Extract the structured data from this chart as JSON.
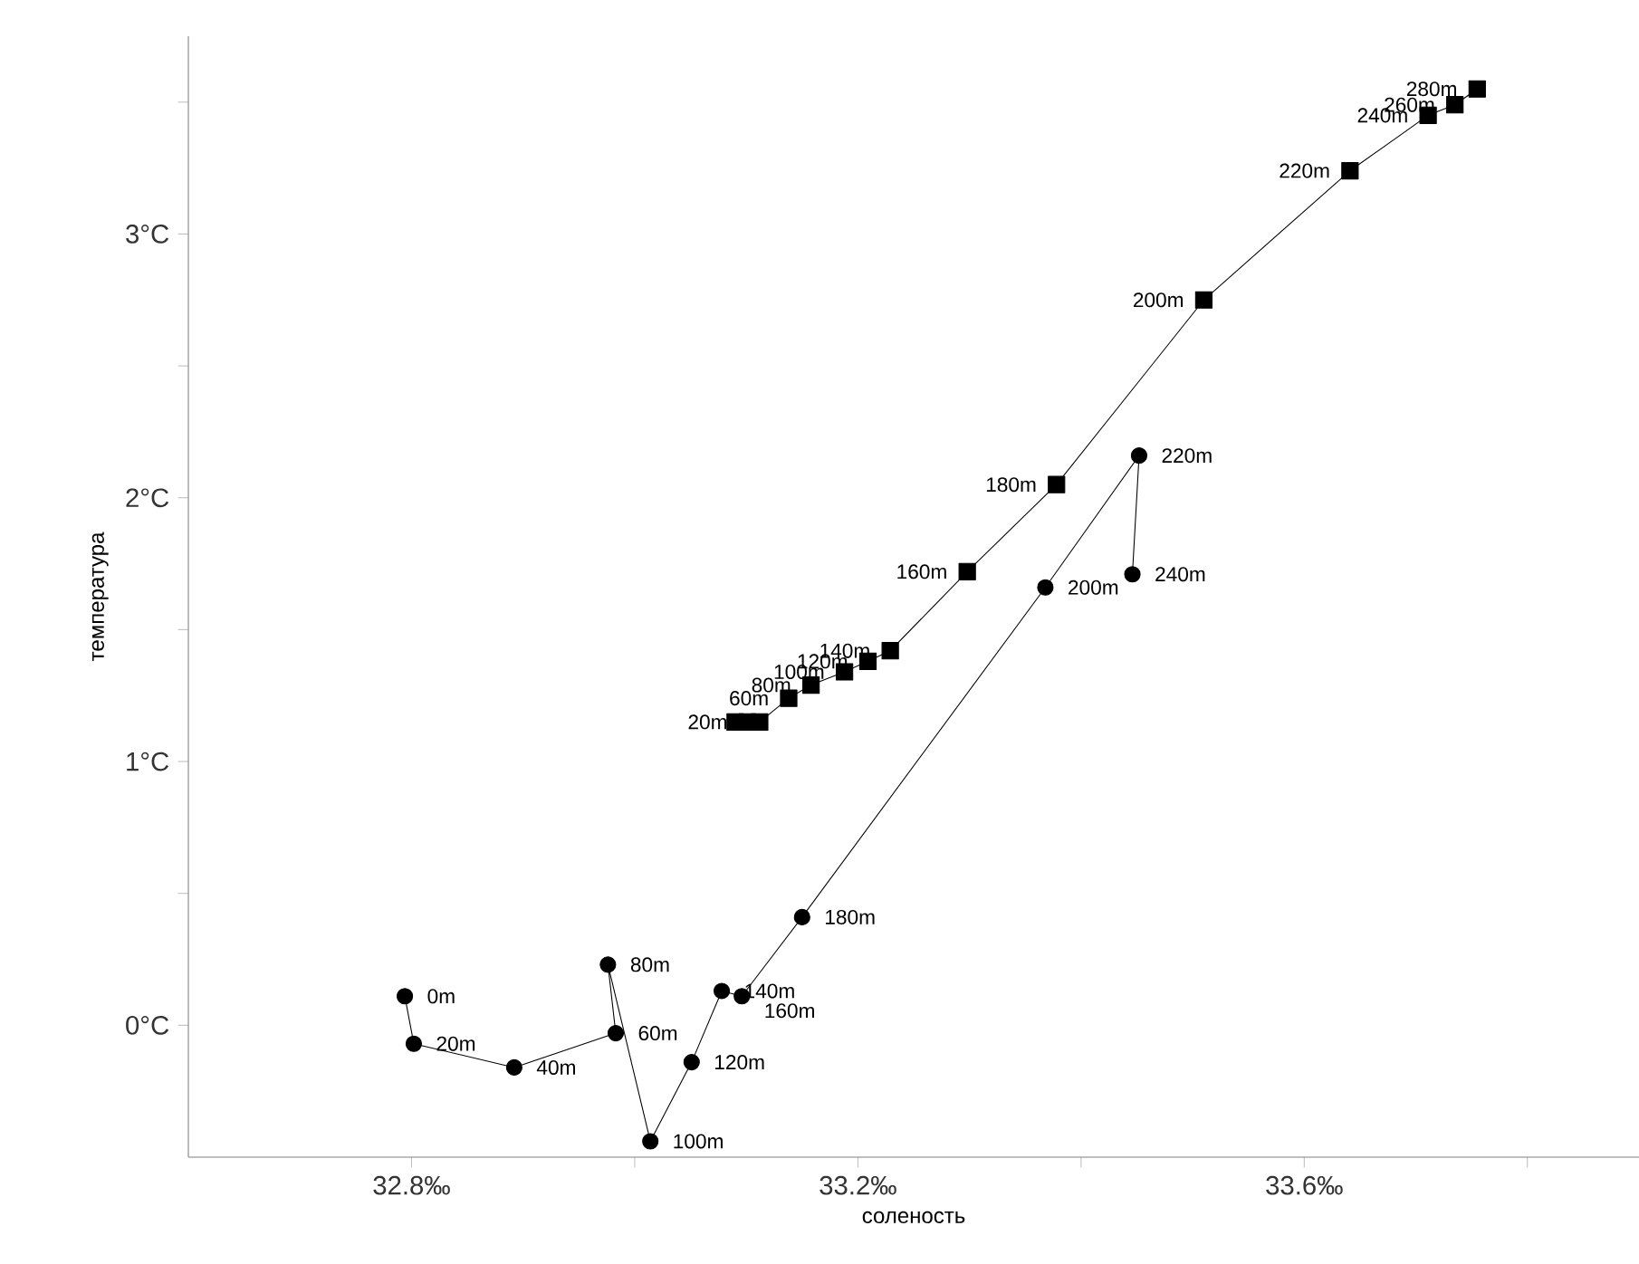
{
  "chart_data": {
    "type": "line",
    "xlabel": "соленость",
    "ylabel": "температура",
    "xlim": [
      32.6,
      33.9
    ],
    "ylim": [
      -0.5,
      3.75
    ],
    "xticks": [
      {
        "value": 32.8,
        "label": "32.8‰"
      },
      {
        "value": 33.0,
        "label": null
      },
      {
        "value": 33.2,
        "label": "33.2‰"
      },
      {
        "value": 33.4,
        "label": null
      },
      {
        "value": 33.6,
        "label": "33.6‰"
      },
      {
        "value": 33.8,
        "label": null
      }
    ],
    "yticks": [
      {
        "value": 0,
        "label": "0°C"
      },
      {
        "value": 0.5,
        "label": null
      },
      {
        "value": 1,
        "label": "1°C"
      },
      {
        "value": 1.5,
        "label": null
      },
      {
        "value": 2,
        "label": "2°C"
      },
      {
        "value": 2.5,
        "label": null
      },
      {
        "value": 3,
        "label": "3°C"
      },
      {
        "value": 3.5,
        "label": null
      }
    ],
    "grid": false,
    "series": [
      {
        "color": "#000000",
        "marker": "square",
        "x": [
          33.09,
          33.101,
          33.112,
          33.138,
          33.158,
          33.188,
          33.209,
          33.229,
          33.298,
          33.378,
          33.51,
          33.641,
          33.711,
          33.735,
          33.755
        ],
        "values": [
          1.15,
          1.15,
          1.15,
          1.24,
          1.29,
          1.34,
          1.38,
          1.42,
          1.72,
          2.05,
          2.75,
          3.24,
          3.45,
          3.49,
          3.55
        ]
      },
      {
        "color": "#000000",
        "marker": "circle",
        "x": [
          32.794,
          32.802,
          32.892,
          32.983,
          32.976,
          33.014,
          33.051,
          33.078,
          33.096,
          33.15,
          33.368,
          33.452,
          33.446
        ],
        "values": [
          0.11,
          -0.07,
          -0.16,
          -0.03,
          0.23,
          -0.44,
          -0.14,
          0.13,
          0.11,
          0.41,
          1.66,
          2.16,
          1.71
        ]
      }
    ],
    "annotations": [
      {
        "text": "20m",
        "x": 33.101,
        "y": 1.15
      },
      {
        "text": "60m",
        "x": 33.138,
        "y": 1.24
      },
      {
        "text": "80m",
        "x": 33.158,
        "y": 1.29
      },
      {
        "text": "100m",
        "x": 33.188,
        "y": 1.34
      },
      {
        "text": "120m",
        "x": 33.209,
        "y": 1.38
      },
      {
        "text": "140m",
        "x": 33.229,
        "y": 1.42
      },
      {
        "text": "160m",
        "x": 33.298,
        "y": 1.72
      },
      {
        "text": "180m",
        "x": 33.378,
        "y": 2.05
      },
      {
        "text": "200m",
        "x": 33.51,
        "y": 2.75
      },
      {
        "text": "220m",
        "x": 33.641,
        "y": 3.24
      },
      {
        "text": "240m",
        "x": 33.711,
        "y": 3.45
      },
      {
        "text": "260m",
        "x": 33.735,
        "y": 3.49
      },
      {
        "text": "280m",
        "x": 33.755,
        "y": 3.55
      },
      {
        "text": "0m",
        "x": 32.794,
        "y": 0.11
      },
      {
        "text": "20m",
        "x": 32.802,
        "y": -0.07
      },
      {
        "text": "40m",
        "x": 32.892,
        "y": -0.16
      },
      {
        "text": "60m",
        "x": 32.983,
        "y": -0.03
      },
      {
        "text": "80m",
        "x": 32.976,
        "y": 0.23
      },
      {
        "text": "100m",
        "x": 33.014,
        "y": -0.44
      },
      {
        "text": "120m",
        "x": 33.051,
        "y": -0.14
      },
      {
        "text": "140m",
        "x": 33.078,
        "y": 0.13
      },
      {
        "text": "160m",
        "x": 33.096,
        "y": 0.11
      },
      {
        "text": "180m",
        "x": 33.15,
        "y": 0.41
      },
      {
        "text": "200m",
        "x": 33.368,
        "y": 1.66
      },
      {
        "text": "220m",
        "x": 33.452,
        "y": 2.16
      },
      {
        "text": "240m",
        "x": 33.446,
        "y": 1.71
      }
    ]
  }
}
